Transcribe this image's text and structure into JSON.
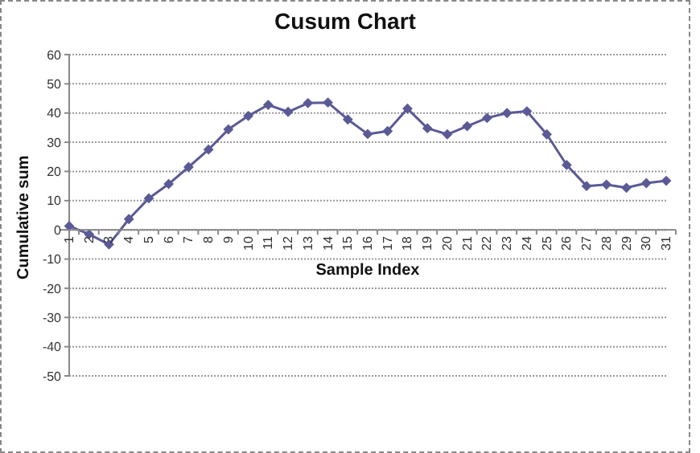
{
  "chart_data": {
    "type": "line",
    "title": "Cusum Chart",
    "xlabel": "Sample Index",
    "ylabel": "Cumulative sum",
    "categories": [
      "1",
      "2",
      "3",
      "4",
      "5",
      "6",
      "7",
      "8",
      "9",
      "10",
      "11",
      "12",
      "13",
      "14",
      "15",
      "16",
      "17",
      "18",
      "19",
      "20",
      "21",
      "22",
      "23",
      "24",
      "25",
      "26",
      "27",
      "28",
      "29",
      "30",
      "31"
    ],
    "series": [
      {
        "color": "#5a5a96",
        "values": [
          1.3,
          -1.5,
          -5,
          3.7,
          10.8,
          15.7,
          21.5,
          27.5,
          34.4,
          39,
          42.8,
          40.4,
          43.4,
          43.6,
          37.8,
          32.8,
          33.8,
          41.5,
          34.8,
          32.7,
          35.5,
          38.3,
          40,
          40.6,
          32.7,
          22.2,
          15,
          15.5,
          14.4,
          16,
          16.8
        ]
      }
    ],
    "ylim": [
      -50,
      60
    ],
    "yticks": [
      -50,
      -40,
      -30,
      -20,
      -10,
      0,
      10,
      20,
      30,
      40,
      50,
      60
    ],
    "grid": "y",
    "legend": false,
    "marker": "diamond",
    "line_style": "solid"
  }
}
